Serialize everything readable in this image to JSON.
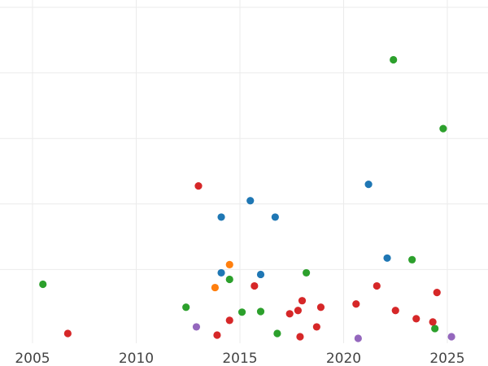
{
  "chart_data": {
    "type": "scatter",
    "title": "",
    "xlabel": "",
    "ylabel": "",
    "xlim": [
      2004.5,
      2027.0
    ],
    "ylim": [
      0,
      10.6
    ],
    "grid": true,
    "legend": "none",
    "x_ticks": [
      2005,
      2010,
      2015,
      2020,
      2025
    ],
    "x_tick_labels": [
      "2005",
      "2010",
      "2015",
      "2020",
      "2025"
    ],
    "y_gridlines": [
      2,
      4,
      6,
      8,
      10
    ],
    "series": [
      {
        "color": "#1f77b4",
        "points": [
          {
            "x": 2014.1,
            "y": 3.6
          },
          {
            "x": 2015.5,
            "y": 4.1
          },
          {
            "x": 2016.7,
            "y": 3.6
          },
          {
            "x": 2021.2,
            "y": 4.6
          },
          {
            "x": 2014.1,
            "y": 1.9
          },
          {
            "x": 2016.0,
            "y": 1.85
          },
          {
            "x": 2022.1,
            "y": 2.35
          }
        ]
      },
      {
        "color": "#ff7f0e",
        "points": [
          {
            "x": 2014.5,
            "y": 2.15
          },
          {
            "x": 2013.8,
            "y": 1.45
          }
        ]
      },
      {
        "color": "#2ca02c",
        "points": [
          {
            "x": 2005.5,
            "y": 1.55
          },
          {
            "x": 2012.4,
            "y": 0.85
          },
          {
            "x": 2014.5,
            "y": 1.7
          },
          {
            "x": 2015.1,
            "y": 0.7
          },
          {
            "x": 2016.0,
            "y": 0.72
          },
          {
            "x": 2016.8,
            "y": 0.05
          },
          {
            "x": 2018.2,
            "y": 1.9
          },
          {
            "x": 2022.4,
            "y": 8.4
          },
          {
            "x": 2023.3,
            "y": 2.3
          },
          {
            "x": 2024.4,
            "y": 0.2
          },
          {
            "x": 2024.8,
            "y": 6.3
          }
        ]
      },
      {
        "color": "#d62728",
        "points": [
          {
            "x": 2006.7,
            "y": 0.05
          },
          {
            "x": 2013.0,
            "y": 4.55
          },
          {
            "x": 2013.9,
            "y": 0.0
          },
          {
            "x": 2014.5,
            "y": 0.45
          },
          {
            "x": 2015.7,
            "y": 1.5
          },
          {
            "x": 2017.4,
            "y": 0.65
          },
          {
            "x": 2017.8,
            "y": 0.75
          },
          {
            "x": 2018.0,
            "y": 1.05
          },
          {
            "x": 2017.9,
            "y": -0.05
          },
          {
            "x": 2018.7,
            "y": 0.25
          },
          {
            "x": 2018.9,
            "y": 0.85
          },
          {
            "x": 2020.6,
            "y": 0.95
          },
          {
            "x": 2021.6,
            "y": 1.5
          },
          {
            "x": 2022.5,
            "y": 0.75
          },
          {
            "x": 2023.5,
            "y": 0.5
          },
          {
            "x": 2024.3,
            "y": 0.4
          },
          {
            "x": 2024.5,
            "y": 1.3
          }
        ]
      },
      {
        "color": "#9467bd",
        "points": [
          {
            "x": 2012.9,
            "y": 0.25
          },
          {
            "x": 2020.7,
            "y": -0.1
          },
          {
            "x": 2025.2,
            "y": -0.05
          }
        ]
      }
    ]
  }
}
